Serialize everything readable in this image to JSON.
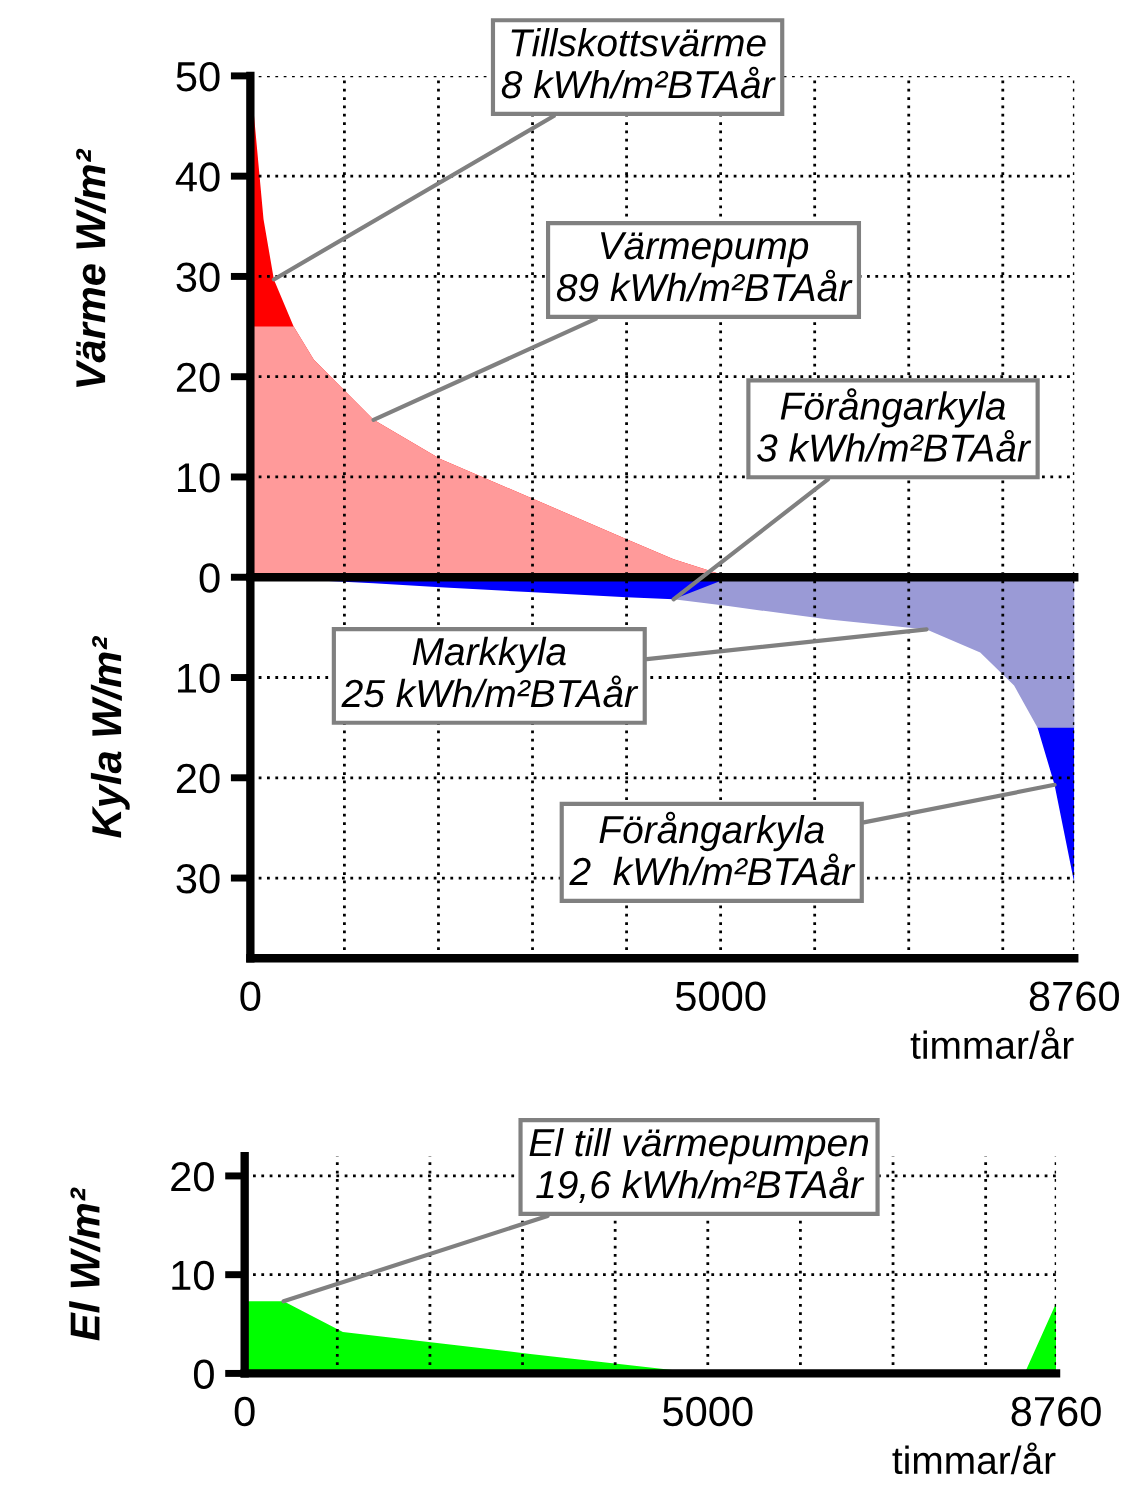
{
  "chart_data": [
    {
      "type": "area",
      "ylabel": "Värme W/m²",
      "xlabel": "timmar/år",
      "grid": true,
      "legend": false,
      "x": [
        0,
        140,
        250,
        460,
        675,
        1310,
        2020,
        3010,
        4000,
        4500,
        5100,
        6130,
        7190,
        7760,
        8120,
        8370,
        8550,
        8760
      ],
      "series": [
        {
          "color": "#ff0000",
          "values": [
            50,
            35.7,
            29.7,
            25,
            21.7,
            15.7,
            11.8,
            7.8,
            3.8,
            1.8,
            0,
            0,
            0,
            0,
            0,
            0,
            0,
            0
          ]
        },
        {
          "color": "#ff9a9a",
          "values": [
            25,
            25,
            25,
            25,
            21.7,
            15.7,
            11.8,
            7.8,
            3.8,
            1.8,
            0,
            0,
            0,
            0,
            0,
            0,
            0,
            0
          ]
        },
        {
          "color": "#0000ff",
          "values": [
            null,
            null,
            null,
            null,
            null,
            null,
            null,
            null,
            null,
            null,
            null,
            null,
            null,
            null,
            null,
            -15,
            -20.7,
            -30.5
          ]
        },
        {
          "color": "#9a9ad6",
          "values": [
            0,
            0,
            0,
            0,
            0,
            0,
            0,
            0,
            0,
            -2.2,
            -2.9,
            -4.2,
            -5.2,
            -7.5,
            -10.8,
            -15,
            -15,
            -15
          ]
        },
        {
          "color": "#0000ff",
          "values": [
            0,
            -0.1,
            -0.1,
            -0.2,
            -0.3,
            -0.6,
            -1,
            -1.5,
            -2,
            -2.2,
            0,
            0,
            0,
            0,
            0,
            0,
            0,
            0
          ]
        }
      ],
      "xlim": [
        0,
        8760
      ],
      "ylim": [
        -38,
        50
      ],
      "xticks": [
        0,
        {
          "value": 1000,
          "label": null
        },
        {
          "value": 2000,
          "label": null
        },
        {
          "value": 3000,
          "label": null
        },
        {
          "value": 4000,
          "label": null
        },
        5000,
        {
          "value": 6000,
          "label": null
        },
        {
          "value": 7000,
          "label": null
        },
        {
          "value": 8000,
          "label": null
        },
        8760
      ],
      "yticks": [
        50,
        40,
        30,
        20,
        10,
        0,
        {
          "value": -10,
          "label": "10"
        },
        {
          "value": -20,
          "label": "20"
        },
        {
          "value": -30,
          "label": "30"
        }
      ],
      "annotations": [
        {
          "text": "Tillskottsvärme\n8 kWh/m²BTAår",
          "x": 250,
          "y": 29.7
        },
        {
          "text": "Värmepump\n89 kWh/m²BTAår",
          "x": 1310,
          "y": 15.7
        },
        {
          "text": "Förångarkyla\n3 kWh/m²BTAår",
          "x": 4500,
          "y": -2.2
        },
        {
          "text": "Markkyla\n25 kWh/m²BTAår",
          "x": 7190,
          "y": -5.2
        },
        {
          "text": "Förångarkyla\n2  kWh/m²BTAår",
          "x": 8550,
          "y": -20.7
        },
        "Kyla W/m²"
      ]
    },
    {
      "type": "area",
      "ylabel": "El W/m²",
      "xlabel": "timmar/år",
      "grid": true,
      "legend": false,
      "x": [
        0,
        420,
        1060,
        3060,
        4760,
        5070,
        8420,
        8760
      ],
      "series": [
        {
          "color": "#00ff00",
          "values": [
            7.3,
            7.3,
            4.2,
            2.0,
            0.2,
            0,
            0,
            7.1
          ]
        }
      ],
      "xlim": [
        0,
        8760
      ],
      "ylim": [
        0,
        22
      ],
      "xticks": [
        0,
        {
          "value": 1000,
          "label": null
        },
        {
          "value": 2000,
          "label": null
        },
        {
          "value": 3000,
          "label": null
        },
        {
          "value": 4000,
          "label": null
        },
        5000,
        {
          "value": 6000,
          "label": null
        },
        {
          "value": 7000,
          "label": null
        },
        {
          "value": 8000,
          "label": null
        },
        8760
      ],
      "yticks": [
        0,
        10,
        20
      ],
      "annotations": [
        {
          "text": "El till värmepumpen\n19,6 kWh/m²BTAår",
          "x": 420,
          "y": 7.3
        }
      ]
    }
  ]
}
